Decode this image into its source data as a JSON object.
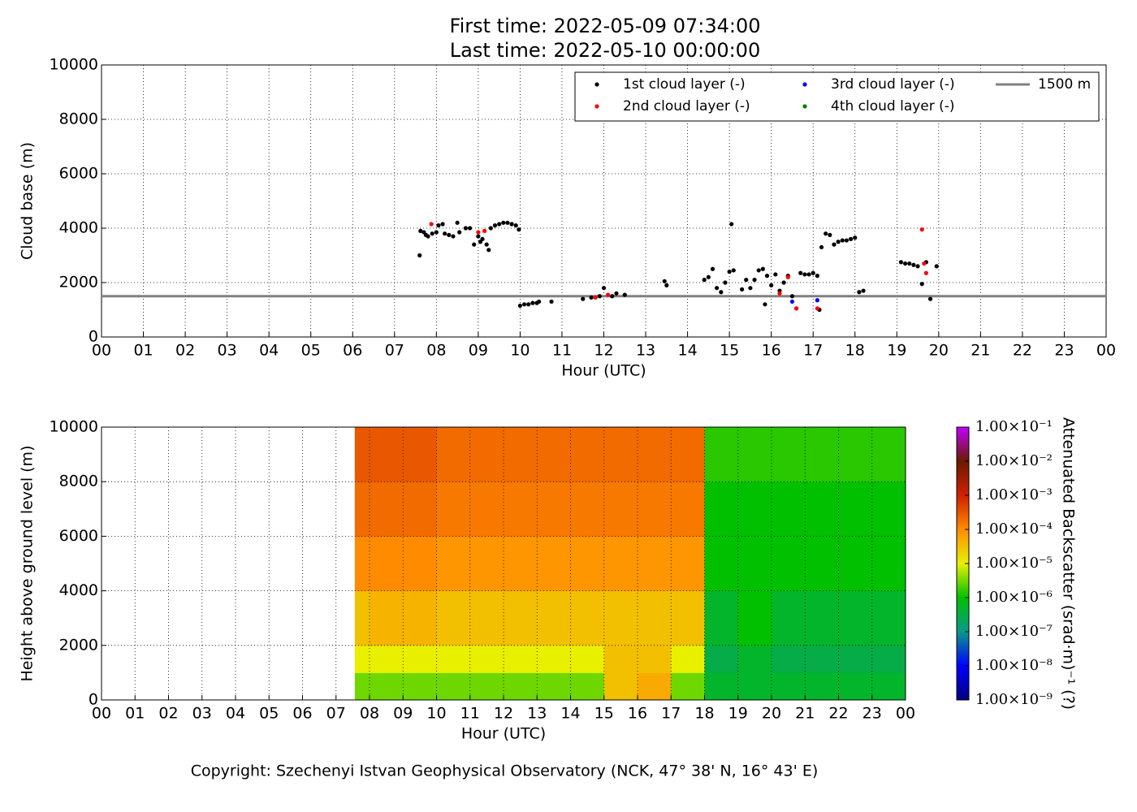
{
  "chart_data": [
    {
      "type": "scatter",
      "title": [
        "First time: 2022-05-09 07:34:00",
        "Last time: 2022-05-10 00:00:00"
      ],
      "x_label": "Hour (UTC)",
      "y_label": "Cloud base (m)",
      "xlim": [
        0,
        24
      ],
      "xticks": [
        {
          "value": 0,
          "label": "00"
        },
        {
          "value": 1,
          "label": "01"
        },
        {
          "value": 2,
          "label": "02"
        },
        {
          "value": 3,
          "label": "03"
        },
        {
          "value": 4,
          "label": "04"
        },
        {
          "value": 5,
          "label": "05"
        },
        {
          "value": 6,
          "label": "06"
        },
        {
          "value": 7,
          "label": "07"
        },
        {
          "value": 8,
          "label": "08"
        },
        {
          "value": 9,
          "label": "09"
        },
        10,
        11,
        12,
        13,
        14,
        15,
        16,
        17,
        18,
        19,
        20,
        21,
        22,
        23,
        {
          "value": 24,
          "label": "00"
        }
      ],
      "ylim": [
        0,
        10000
      ],
      "yticks": [
        0,
        2000,
        4000,
        6000,
        8000,
        10000
      ],
      "grid": true,
      "legend": "upper right",
      "series": [
        {
          "name": "1st cloud layer (-)",
          "color": "#000000",
          "x": [
            7.6,
            7.62,
            7.7,
            7.75,
            7.8,
            7.9,
            8.0,
            8.05,
            8.15,
            8.2,
            8.3,
            8.4,
            8.5,
            8.55,
            8.7,
            8.8,
            8.9,
            9.0,
            9.05,
            9.1,
            9.2,
            9.25,
            9.3,
            9.4,
            9.5,
            9.6,
            9.7,
            9.8,
            9.9,
            9.97,
            10.0,
            10.1,
            10.2,
            10.3,
            10.4,
            10.45,
            10.75,
            11.5,
            11.7,
            11.9,
            12.0,
            12.2,
            12.3,
            12.5,
            13.45,
            13.5,
            14.4,
            14.5,
            14.6,
            14.7,
            14.8,
            14.9,
            15.0,
            15.05,
            15.1,
            15.3,
            15.4,
            15.5,
            15.6,
            15.7,
            15.8,
            15.9,
            15.85,
            16.0,
            16.1,
            16.2,
            16.3,
            16.4,
            16.5,
            16.6,
            16.7,
            16.8,
            16.9,
            17.0,
            17.1,
            17.15,
            17.2,
            17.3,
            17.4,
            17.5,
            17.6,
            17.7,
            17.8,
            17.9,
            18.0,
            18.1,
            18.2,
            19.1,
            19.2,
            19.3,
            19.4,
            19.5,
            19.6,
            19.7,
            19.8,
            19.95
          ],
          "values": [
            3000,
            3900,
            3850,
            3750,
            3700,
            3800,
            3850,
            4100,
            4150,
            3800,
            3750,
            3700,
            4200,
            3850,
            4000,
            4000,
            3400,
            3700,
            3500,
            3600,
            3400,
            3200,
            4000,
            4100,
            4150,
            4200,
            4200,
            4150,
            4100,
            3950,
            1150,
            1200,
            1200,
            1250,
            1250,
            1300,
            1300,
            1400,
            1450,
            1500,
            1800,
            1500,
            1600,
            1550,
            2050,
            1900,
            2100,
            2200,
            2500,
            1800,
            1650,
            2000,
            2400,
            4150,
            2450,
            1750,
            2100,
            1800,
            2100,
            2450,
            2500,
            2250,
            1200,
            1900,
            2300,
            1700,
            2000,
            2250,
            1500,
            1050,
            2350,
            2300,
            2300,
            2350,
            2250,
            1000,
            3300,
            3800,
            3750,
            3400,
            3500,
            3550,
            3550,
            3600,
            3650,
            1650,
            1700,
            2750,
            2700,
            2700,
            2650,
            2600,
            1950,
            2750,
            1400,
            2600
          ]
        },
        {
          "name": "2nd cloud layer (-)",
          "color": "#ff0000",
          "x": [
            7.88,
            9.0,
            9.15,
            11.8,
            12.1,
            16.2,
            16.4,
            16.6,
            17.1,
            19.6,
            19.65,
            19.7
          ],
          "values": [
            4150,
            3850,
            3900,
            1450,
            1550,
            1600,
            2200,
            1050,
            1050,
            3950,
            2700,
            2350
          ]
        },
        {
          "name": "3rd cloud layer (-)",
          "color": "#0000ff",
          "x": [
            16.5,
            17.1
          ],
          "values": [
            1300,
            1350
          ]
        },
        {
          "name": "4th cloud layer (-)",
          "color": "#008000",
          "x": [],
          "values": []
        }
      ],
      "reference_lines": [
        {
          "name": "1500 m",
          "value": 1500,
          "color": "#808080"
        }
      ]
    },
    {
      "type": "heatmap",
      "x_label": "Hour (UTC)",
      "y_label": "Height above ground level (m)",
      "colorbar_label": "Attenuated Backscatter (srad·m)⁻¹ (?)",
      "xlim": [
        0,
        24
      ],
      "xticks": [
        {
          "value": 0,
          "label": "00"
        },
        {
          "value": 1,
          "label": "01"
        },
        {
          "value": 2,
          "label": "02"
        },
        {
          "value": 3,
          "label": "03"
        },
        {
          "value": 4,
          "label": "04"
        },
        {
          "value": 5,
          "label": "05"
        },
        {
          "value": 6,
          "label": "06"
        },
        {
          "value": 7,
          "label": "07"
        },
        {
          "value": 8,
          "label": "08"
        },
        {
          "value": 9,
          "label": "09"
        },
        10,
        11,
        12,
        13,
        14,
        15,
        16,
        17,
        18,
        19,
        20,
        21,
        22,
        23,
        {
          "value": 24,
          "label": "00"
        }
      ],
      "ylim": [
        0,
        10000
      ],
      "yticks": [
        0,
        2000,
        4000,
        6000,
        8000,
        10000
      ],
      "grid": true,
      "color_scale": "log",
      "clim": [
        1e-09,
        0.1
      ],
      "cticks": [
        {
          "value": 1e-09,
          "label": "1.00×10⁻⁹"
        },
        {
          "value": 1e-08,
          "label": "1.00×10⁻⁸"
        },
        {
          "value": 1e-07,
          "label": "1.00×10⁻⁷"
        },
        {
          "value": 1e-06,
          "label": "1.00×10⁻⁶"
        },
        {
          "value": 1e-05,
          "label": "1.00×10⁻⁵"
        },
        {
          "value": 0.0001,
          "label": "1.00×10⁻⁴"
        },
        {
          "value": 0.001,
          "label": "1.00×10⁻³"
        },
        {
          "value": 0.01,
          "label": "1.00×10⁻²"
        },
        {
          "value": 0.1,
          "label": "1.00×10⁻¹"
        }
      ],
      "colormap": [
        "#00007f",
        "#0000ff",
        "#0a9a8a",
        "#00c000",
        "#e8f000",
        "#ff8c00",
        "#d02000",
        "#6b1a00",
        "#c000ff"
      ],
      "x_bins": [
        7.56,
        8,
        9,
        10,
        11,
        12,
        13,
        14,
        15,
        16,
        17,
        18,
        19,
        20,
        21,
        22,
        23,
        24
      ],
      "y_bins": [
        0,
        1000,
        2000,
        4000,
        6000,
        8000,
        10000
      ],
      "z": [
        [
          3e-06,
          3e-06,
          3e-06,
          3e-06,
          3e-06,
          3e-06,
          3e-06,
          3e-06,
          3e-05,
          5e-05,
          3e-06,
          5e-07,
          5e-07,
          5e-07,
          5e-07,
          5e-07,
          5e-07
        ],
        [
          1e-05,
          1e-05,
          1e-05,
          1e-05,
          1e-05,
          1e-05,
          1e-05,
          1e-05,
          3e-05,
          3e-05,
          1e-05,
          3e-07,
          5e-07,
          3e-07,
          3e-07,
          3e-07,
          3e-07
        ],
        [
          3e-05,
          4e-05,
          4e-05,
          3e-05,
          3e-05,
          3e-05,
          3e-05,
          3e-05,
          3e-05,
          3e-05,
          3e-05,
          5e-07,
          1e-06,
          5e-07,
          5e-07,
          5e-07,
          5e-07
        ],
        [
          0.0001,
          0.0001,
          0.0001,
          8e-05,
          8e-05,
          8e-05,
          8e-05,
          8e-05,
          8e-05,
          8e-05,
          8e-05,
          1e-06,
          1e-06,
          1e-06,
          1e-06,
          1e-06,
          1e-06
        ],
        [
          0.0002,
          0.0002,
          0.0002,
          0.00015,
          0.00015,
          0.00015,
          0.00015,
          0.00015,
          0.00015,
          0.00015,
          0.00015,
          1e-06,
          1e-06,
          1e-06,
          1e-06,
          1e-06,
          1e-06
        ],
        [
          0.0003,
          0.0003,
          0.0003,
          0.0002,
          0.0002,
          0.0002,
          0.0002,
          0.0002,
          0.0002,
          0.0002,
          0.0002,
          1.5e-06,
          1.5e-06,
          1.5e-06,
          1.5e-06,
          1.5e-06,
          1.5e-06
        ]
      ]
    }
  ],
  "footer": "Copyright: Szechenyi Istvan Geophysical Observatory (NCK, 47° 38' N, 16° 43' E)"
}
